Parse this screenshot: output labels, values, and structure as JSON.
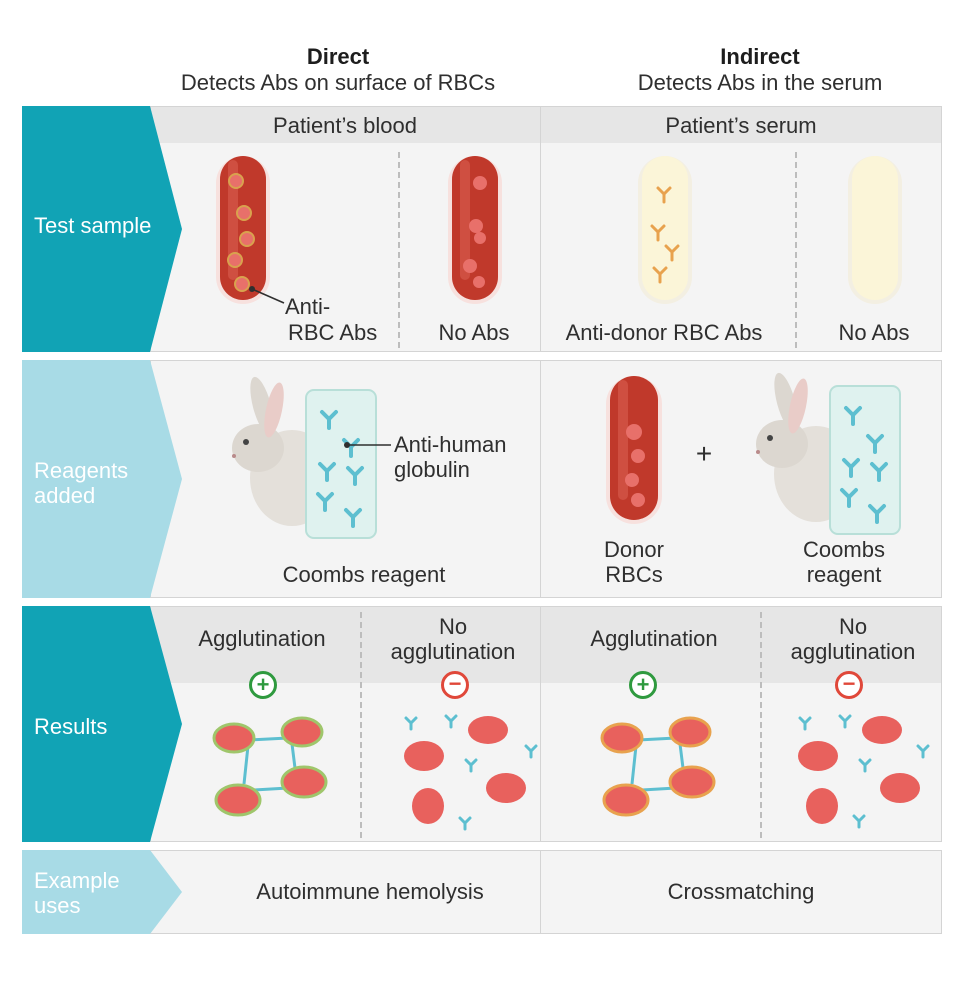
{
  "header": {
    "direct_title": "Direct",
    "direct_sub": "Detects Abs on surface of RBCs",
    "indirect_title": "Indirect",
    "indirect_sub": "Detects Abs in the serum"
  },
  "rows": {
    "test_sample": "Test sample",
    "reagents_added_line1": "Reagents",
    "reagents_added_line2": "added",
    "results": "Results",
    "example_uses_line1": "Example",
    "example_uses_line2": "uses"
  },
  "test_sample": {
    "direct_band": "Patient’s blood",
    "indirect_band": "Patient’s serum",
    "direct_pos_line1": "Anti-",
    "direct_pos_line2": "RBC Abs",
    "direct_neg": "No Abs",
    "indirect_pos": "Anti-donor RBC Abs",
    "indirect_neg": "No Abs"
  },
  "reagents": {
    "ahg_line1": "Anti-human",
    "ahg_line2": "globulin",
    "direct_coombs": "Coombs reagent",
    "plus": "+",
    "donor_line1": "Donor",
    "donor_line2": "RBCs",
    "indirect_coombs_line1": "Coombs",
    "indirect_coombs_line2": "reagent"
  },
  "results": {
    "direct_pos": "Agglutination",
    "direct_neg_line1": "No",
    "direct_neg_line2": "agglutination",
    "indirect_pos": "Agglutination",
    "indirect_neg_line1": "No",
    "indirect_neg_line2": "agglutination",
    "positive_symbol": "+",
    "negative_symbol": "−"
  },
  "uses": {
    "direct": "Autoimmune hemolysis",
    "indirect": "Crossmatching"
  },
  "colors": {
    "teal_dark": "#11a3b5",
    "teal_light": "#a8dbe6",
    "blood": "#c0392b",
    "rbc": "#e8615d",
    "antibody": "#5dbfd0",
    "positive": "#2f9a3f",
    "negative": "#e0483a"
  }
}
